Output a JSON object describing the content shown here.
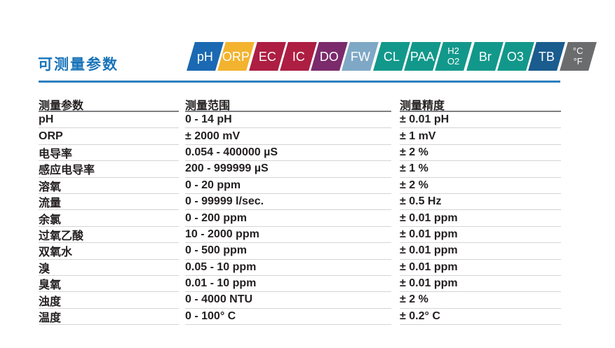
{
  "page": {
    "title": "可测量参数"
  },
  "badges": [
    {
      "id": "ph",
      "lines": [
        "pH"
      ],
      "color": "#1a69b2"
    },
    {
      "id": "orp",
      "lines": [
        "ORP"
      ],
      "color": "#f3b32e"
    },
    {
      "id": "ec",
      "lines": [
        "EC"
      ],
      "color": "#ad1e42"
    },
    {
      "id": "ic",
      "lines": [
        "IC"
      ],
      "color": "#ad1e42"
    },
    {
      "id": "do",
      "lines": [
        "DO"
      ],
      "color": "#7b2b6c"
    },
    {
      "id": "fw",
      "lines": [
        "FW"
      ],
      "color": "#7fa8c6"
    },
    {
      "id": "cl",
      "lines": [
        "CL"
      ],
      "color": "#12988b"
    },
    {
      "id": "paa",
      "lines": [
        "PAA"
      ],
      "color": "#12988b"
    },
    {
      "id": "h2o2",
      "lines": [
        "H2",
        "O2"
      ],
      "color": "#12988b"
    },
    {
      "id": "br",
      "lines": [
        "Br"
      ],
      "color": "#12988b"
    },
    {
      "id": "o3",
      "lines": [
        "O3"
      ],
      "color": "#12988b"
    },
    {
      "id": "tb",
      "lines": [
        "TB"
      ],
      "color": "#1a5c8e"
    },
    {
      "id": "temp-unit",
      "lines": [
        "°C",
        "°F"
      ],
      "color": "#6b6c6e"
    }
  ],
  "table": {
    "headers": [
      "测量参数",
      "测量范围",
      "测量精度"
    ],
    "rows": [
      [
        "pH",
        "0 - 14 pH",
        "± 0.01 pH"
      ],
      [
        "ORP",
        "± 2000 mV",
        "± 1 mV"
      ],
      [
        "电导率",
        "0.054 - 400000 µS",
        "± 2 %"
      ],
      [
        "感应电导率",
        "200 - 999999 µS",
        "± 1 %"
      ],
      [
        "溶氧",
        "0 - 20 ppm",
        "± 2 %"
      ],
      [
        "流量",
        "0 - 99999 l/sec.",
        "± 0.5 Hz"
      ],
      [
        "余氯",
        "0 - 200 ppm",
        "± 0.01 ppm"
      ],
      [
        "过氧乙酸",
        "10 - 2000 ppm",
        "± 0.01 ppm"
      ],
      [
        "双氧水",
        "0 - 500 ppm",
        "± 0.01 ppm"
      ],
      [
        "溴",
        "0.05 - 10 ppm",
        "± 0.01 ppm"
      ],
      [
        "臭氧",
        "0.01 - 10 ppm",
        "± 0.01 ppm"
      ],
      [
        "浊度",
        "0 - 4000 NTU",
        "± 2 %"
      ],
      [
        "温度",
        "0 - 100° C",
        "± 0.2° C"
      ]
    ],
    "colors": {
      "text": "#231f20",
      "header_border": "#7d7f82",
      "row_border": "#d4d4d5",
      "title_blue": "#1a74b9",
      "rule_blue": "#2e7fbd"
    }
  }
}
